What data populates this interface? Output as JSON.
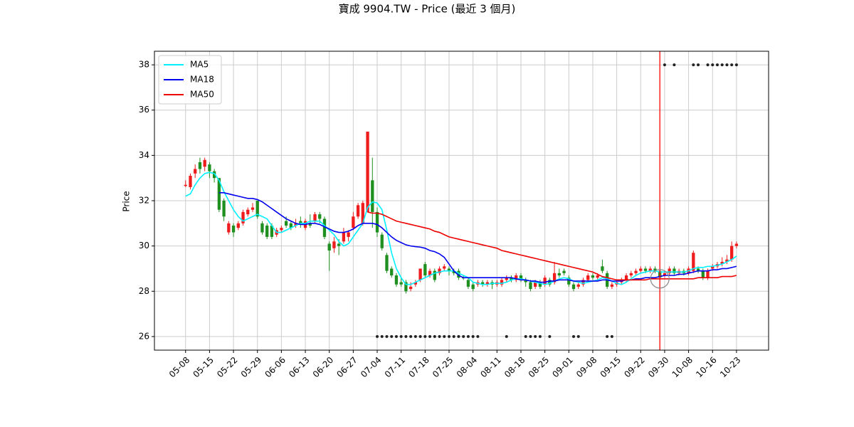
{
  "chart_data": {
    "type": "candlestick",
    "title": "寶成 9904.TW - Price (最近 3 個月)",
    "ylabel": "Price",
    "categories": [
      "05-08",
      null,
      null,
      null,
      null,
      "05-15",
      null,
      null,
      null,
      null,
      "05-22",
      null,
      null,
      null,
      null,
      "05-29",
      null,
      null,
      null,
      null,
      "06-06",
      null,
      null,
      null,
      null,
      "06-13",
      null,
      null,
      null,
      null,
      "06-20",
      null,
      null,
      null,
      null,
      "06-27",
      null,
      null,
      null,
      null,
      "07-04",
      null,
      null,
      null,
      null,
      "07-11",
      null,
      null,
      null,
      null,
      "07-18",
      null,
      null,
      null,
      null,
      "07-25",
      null,
      null,
      null,
      null,
      "08-04",
      null,
      null,
      null,
      null,
      "08-11",
      null,
      null,
      null,
      null,
      "08-18",
      null,
      null,
      null,
      null,
      "08-25",
      null,
      null,
      null,
      null,
      "09-01",
      null,
      null,
      null,
      null,
      "09-08",
      null,
      null,
      null,
      null,
      "09-15",
      null,
      null,
      null,
      null,
      "09-22",
      null,
      null,
      null,
      null,
      "09-30",
      null,
      null,
      null,
      null,
      "10-08",
      null,
      null,
      null,
      null,
      "10-16",
      null,
      null,
      null,
      null,
      "10-23"
    ],
    "open": [
      32.65,
      32.6,
      33.2,
      33.7,
      33.5,
      33.6,
      33.3,
      33.0,
      32.0,
      30.6,
      30.9,
      30.8,
      31.0,
      31.4,
      31.6,
      32.0,
      31.0,
      30.9,
      30.9,
      30.5,
      30.7,
      31.1,
      31.0,
      30.9,
      31.1,
      30.8,
      31.0,
      31.1,
      31.4,
      31.2,
      30.1,
      29.9,
      30.1,
      30.2,
      30.4,
      30.8,
      31.3,
      31.0,
      31.5,
      32.9,
      31.5,
      30.5,
      29.6,
      29.0,
      28.7,
      28.4,
      28.4,
      28.1,
      28.3,
      28.5,
      29.2,
      28.7,
      28.9,
      28.8,
      29.0,
      29.0,
      28.9,
      28.9,
      28.6,
      28.5,
      28.3,
      28.3,
      28.4,
      28.3,
      28.4,
      28.3,
      28.3,
      28.5,
      28.6,
      28.5,
      28.7,
      28.5,
      28.4,
      28.2,
      28.4,
      28.3,
      28.5,
      28.4,
      28.8,
      28.9,
      28.6,
      28.3,
      28.2,
      28.3,
      28.5,
      28.7,
      28.6,
      29.1,
      28.8,
      28.2,
      28.3,
      28.4,
      28.5,
      28.7,
      28.8,
      28.9,
      29.0,
      28.9,
      29.0,
      28.9,
      28.7,
      28.8,
      29.0,
      28.8,
      28.9,
      28.8,
      28.9,
      29.0,
      28.9,
      28.6,
      29.0,
      29.1,
      29.2,
      29.3,
      29.4,
      30.0
    ],
    "high": [
      32.9,
      33.2,
      33.6,
      33.9,
      33.9,
      33.7,
      33.4,
      33.0,
      32.1,
      31.1,
      31.0,
      31.1,
      31.6,
      31.7,
      31.9,
      32.0,
      31.1,
      31.0,
      31.0,
      30.8,
      30.9,
      31.3,
      31.1,
      31.2,
      31.3,
      31.2,
      31.4,
      31.5,
      31.5,
      31.3,
      30.2,
      30.4,
      30.3,
      30.8,
      30.7,
      31.5,
      31.9,
      32.0,
      35.05,
      33.9,
      31.7,
      30.6,
      29.7,
      29.1,
      28.8,
      28.6,
      28.5,
      28.4,
      28.5,
      29.0,
      29.3,
      29.0,
      29.0,
      29.1,
      29.2,
      29.1,
      29.0,
      29.0,
      28.7,
      28.6,
      28.4,
      28.5,
      28.5,
      28.5,
      28.5,
      28.5,
      28.6,
      28.7,
      28.7,
      28.8,
      28.8,
      28.6,
      28.5,
      28.5,
      28.5,
      28.7,
      28.6,
      29.3,
      29.0,
      29.0,
      28.7,
      28.4,
      28.4,
      28.6,
      28.8,
      28.8,
      28.8,
      29.4,
      28.9,
      28.4,
      28.5,
      28.6,
      28.8,
      28.9,
      29.0,
      29.1,
      29.1,
      29.1,
      29.1,
      29.0,
      28.9,
      29.1,
      29.1,
      29.0,
      29.0,
      29.1,
      29.8,
      29.1,
      29.0,
      29.0,
      29.2,
      29.3,
      29.5,
      29.6,
      30.2,
      30.2
    ],
    "low": [
      32.6,
      32.5,
      33.0,
      33.2,
      33.3,
      33.0,
      32.8,
      31.5,
      31.1,
      30.5,
      30.4,
      30.7,
      30.9,
      31.3,
      31.5,
      31.2,
      30.5,
      30.3,
      30.3,
      30.4,
      30.6,
      30.8,
      30.7,
      30.8,
      30.8,
      30.7,
      30.8,
      31.0,
      31.0,
      30.3,
      28.9,
      29.7,
      29.6,
      30.1,
      30.2,
      30.7,
      31.2,
      30.9,
      31.5,
      30.8,
      30.4,
      29.8,
      28.8,
      28.6,
      28.2,
      28.2,
      27.9,
      28.0,
      28.2,
      28.4,
      28.6,
      28.6,
      28.4,
      28.7,
      28.9,
      28.7,
      28.7,
      28.5,
      28.5,
      28.1,
      28.0,
      28.2,
      28.2,
      28.2,
      28.1,
      28.2,
      28.2,
      28.4,
      28.4,
      28.4,
      28.4,
      28.2,
      28.0,
      28.1,
      28.1,
      28.2,
      28.2,
      28.3,
      28.6,
      28.7,
      28.2,
      28.0,
      28.1,
      28.2,
      28.4,
      28.5,
      28.5,
      28.8,
      28.1,
      28.1,
      28.2,
      28.3,
      28.4,
      28.6,
      28.7,
      28.8,
      28.8,
      28.8,
      28.8,
      28.5,
      28.6,
      28.7,
      28.7,
      28.7,
      28.7,
      28.7,
      28.8,
      28.8,
      28.5,
      28.5,
      28.9,
      29.0,
      29.1,
      29.2,
      29.3,
      29.9
    ],
    "close": [
      32.7,
      33.1,
      33.4,
      33.4,
      33.8,
      33.3,
      33.0,
      31.6,
      31.3,
      31.0,
      30.6,
      31.0,
      31.5,
      31.6,
      31.7,
      31.3,
      30.6,
      30.4,
      30.4,
      30.7,
      30.8,
      30.9,
      30.8,
      31.0,
      31.0,
      31.1,
      30.9,
      31.4,
      31.2,
      30.4,
      29.8,
      30.2,
      30.0,
      30.6,
      30.6,
      31.3,
      31.8,
      31.9,
      35.05,
      31.5,
      30.6,
      29.9,
      28.9,
      28.7,
      28.3,
      28.3,
      28.0,
      28.2,
      28.4,
      29.0,
      28.7,
      28.9,
      28.5,
      29.0,
      29.1,
      28.9,
      28.8,
      28.6,
      28.6,
      28.2,
      28.1,
      28.4,
      28.3,
      28.4,
      28.3,
      28.4,
      28.5,
      28.6,
      28.5,
      28.7,
      28.5,
      28.4,
      28.1,
      28.4,
      28.2,
      28.6,
      28.3,
      28.8,
      28.7,
      28.8,
      28.3,
      28.1,
      28.3,
      28.5,
      28.7,
      28.6,
      28.7,
      28.9,
      28.2,
      28.3,
      28.4,
      28.5,
      28.7,
      28.8,
      28.9,
      29.0,
      28.9,
      29.0,
      28.9,
      28.6,
      28.8,
      29.0,
      28.8,
      28.9,
      28.8,
      29.0,
      29.7,
      28.9,
      28.6,
      28.9,
      29.1,
      29.2,
      29.3,
      29.4,
      30.0,
      30.1
    ],
    "up_color": "#ee1c1c",
    "down_color": "#1f8f1f",
    "series": [
      {
        "name": "MA5",
        "color": "#00f0ff",
        "values": [
          32.2,
          32.3,
          32.7,
          33.0,
          33.2,
          33.25,
          33.2,
          32.9,
          32.4,
          32.0,
          31.6,
          31.3,
          31.1,
          31.2,
          31.3,
          31.4,
          31.3,
          31.2,
          30.9,
          30.6,
          30.6,
          30.7,
          30.8,
          30.9,
          31.0,
          31.0,
          31.1,
          31.1,
          31.1,
          30.9,
          30.7,
          30.5,
          30.2,
          30.0,
          30.1,
          30.4,
          30.7,
          31.0,
          31.7,
          31.95,
          31.9,
          31.6,
          30.7,
          29.7,
          29.0,
          28.6,
          28.3,
          28.3,
          28.4,
          28.5,
          28.6,
          28.7,
          28.8,
          28.85,
          28.9,
          28.9,
          28.9,
          28.8,
          28.7,
          28.6,
          28.4,
          28.35,
          28.3,
          28.3,
          28.35,
          28.35,
          28.35,
          28.4,
          28.5,
          28.55,
          28.55,
          28.5,
          28.45,
          28.4,
          28.35,
          28.3,
          28.35,
          28.45,
          28.55,
          28.6,
          28.55,
          28.45,
          28.4,
          28.35,
          28.4,
          28.45,
          28.5,
          28.6,
          28.55,
          28.45,
          28.35,
          28.3,
          28.4,
          28.55,
          28.7,
          28.8,
          28.85,
          28.9,
          28.9,
          28.85,
          28.85,
          28.85,
          28.85,
          28.85,
          28.85,
          28.9,
          29.0,
          29.05,
          29.05,
          29.1,
          29.1,
          29.15,
          29.2,
          29.3,
          29.4,
          29.55
        ]
      },
      {
        "name": "MA18",
        "color": "#0000ee",
        "values": [
          null,
          null,
          null,
          null,
          null,
          null,
          null,
          32.35,
          32.35,
          32.3,
          32.25,
          32.2,
          32.15,
          32.1,
          32.1,
          32.05,
          31.95,
          31.8,
          31.65,
          31.5,
          31.35,
          31.2,
          31.1,
          31.0,
          30.95,
          30.95,
          31.0,
          31.0,
          30.95,
          30.85,
          30.75,
          30.65,
          30.6,
          30.6,
          30.65,
          30.75,
          30.9,
          31.0,
          31.0,
          31.0,
          30.95,
          30.8,
          30.6,
          30.4,
          30.25,
          30.15,
          30.05,
          30.0,
          29.97,
          29.95,
          29.9,
          29.8,
          29.75,
          29.65,
          29.5,
          29.2,
          28.9,
          28.7,
          28.6,
          28.6,
          28.6,
          28.6,
          28.6,
          28.6,
          28.6,
          28.6,
          28.6,
          28.6,
          28.6,
          28.55,
          28.5,
          28.5,
          28.45,
          28.45,
          28.4,
          28.4,
          28.45,
          28.45,
          28.5,
          28.5,
          28.5,
          28.45,
          28.45,
          28.45,
          28.45,
          28.45,
          28.45,
          28.5,
          28.5,
          28.45,
          28.45,
          28.45,
          28.5,
          28.5,
          28.55,
          28.55,
          28.6,
          28.6,
          28.6,
          28.65,
          28.7,
          28.7,
          28.7,
          28.75,
          28.75,
          28.8,
          28.85,
          28.9,
          28.9,
          28.9,
          28.95,
          28.95,
          29.0,
          29.0,
          29.05,
          29.1
        ]
      },
      {
        "name": "MA50",
        "color": "#ee0000",
        "values": [
          null,
          null,
          null,
          null,
          null,
          null,
          null,
          null,
          null,
          null,
          null,
          null,
          null,
          null,
          null,
          null,
          null,
          null,
          null,
          null,
          null,
          null,
          null,
          null,
          null,
          null,
          null,
          null,
          null,
          null,
          null,
          null,
          null,
          null,
          null,
          null,
          null,
          null,
          31.5,
          31.45,
          31.45,
          31.4,
          31.3,
          31.2,
          31.1,
          31.05,
          31.0,
          30.95,
          30.9,
          30.85,
          30.8,
          30.75,
          30.65,
          30.6,
          30.5,
          30.4,
          30.35,
          30.3,
          30.25,
          30.2,
          30.15,
          30.1,
          30.05,
          30.0,
          29.95,
          29.9,
          29.8,
          29.75,
          29.7,
          29.65,
          29.6,
          29.55,
          29.5,
          29.45,
          29.4,
          29.35,
          29.3,
          29.25,
          29.2,
          29.15,
          29.1,
          29.05,
          29.0,
          28.95,
          28.9,
          28.85,
          28.75,
          28.65,
          28.6,
          28.55,
          28.5,
          28.5,
          28.5,
          28.5,
          28.5,
          28.5,
          28.5,
          28.55,
          28.55,
          28.55,
          28.55,
          28.55,
          28.55,
          28.55,
          28.55,
          28.55,
          28.55,
          28.6,
          28.6,
          28.6,
          28.6,
          28.6,
          28.65,
          28.65,
          28.65,
          28.7
        ]
      }
    ],
    "markers": [
      {
        "x": [
          100,
          102,
          106,
          107,
          109,
          110,
          111,
          112,
          113,
          114,
          115
        ],
        "y": 38,
        "color": "#222222"
      },
      {
        "x": [
          40,
          41,
          42,
          43,
          44,
          45,
          46,
          47,
          48,
          49,
          50,
          51,
          52,
          53,
          54,
          55,
          56,
          57,
          58,
          59,
          60,
          61,
          67,
          71,
          72,
          73,
          74,
          76,
          81,
          82,
          88,
          89
        ],
        "y": 26,
        "color": "#222222"
      }
    ],
    "vline": {
      "x": 99,
      "color": "#ff0000"
    },
    "circle": {
      "x": 99,
      "y": 28.55,
      "color": "#888888"
    },
    "xlim": [
      -6.5,
      121.7
    ],
    "ylim": [
      25.4,
      38.6
    ],
    "yticks": [
      26,
      28,
      30,
      32,
      34,
      36,
      38
    ],
    "grid": true,
    "legend": "upper left"
  }
}
